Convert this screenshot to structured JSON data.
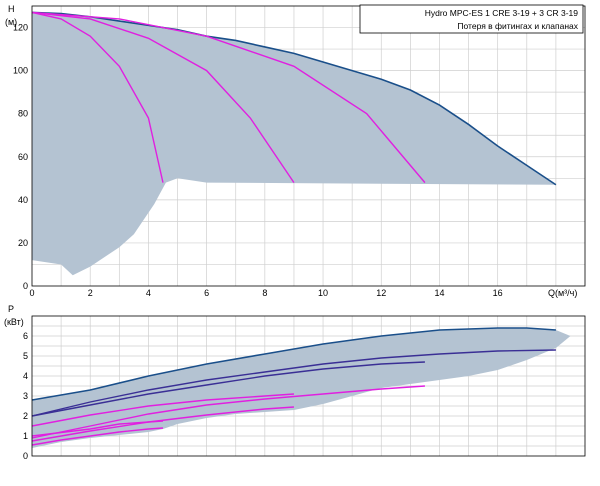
{
  "colors": {
    "area": "#b4c3d2",
    "envelope": "#1a4f8a",
    "envelope_dark": "#3a2f95",
    "system_curve": "#e020e0",
    "grid": "#cfcfcf",
    "frame": "#000000"
  },
  "legend": {
    "line1": "Hydro MPC-ES 1 CRE 3-19  +  3 CR 3-19",
    "line2": "Потеря в фитингах и клапанах"
  },
  "chart_data": [
    {
      "type": "area",
      "title": "",
      "ylabel": "H",
      "yunit": "(м)",
      "xlabel": "Q(м³/ч)",
      "xlim": [
        0,
        19
      ],
      "ylim": [
        0,
        130
      ],
      "grid": true,
      "x_ticks": [
        "0",
        "2",
        "4",
        "6",
        "8",
        "10",
        "12",
        "14",
        "16"
      ],
      "y_ticks": [
        "0",
        "20",
        "40",
        "60",
        "80",
        "100",
        "120"
      ],
      "region_lower": [
        [
          0,
          12
        ],
        [
          1,
          10
        ],
        [
          1.4,
          5
        ],
        [
          2,
          9
        ],
        [
          3,
          18
        ],
        [
          3.5,
          24
        ],
        [
          4.2,
          38
        ],
        [
          4.6,
          48
        ],
        [
          5,
          50
        ],
        [
          6,
          48
        ],
        [
          18,
          47
        ]
      ],
      "envelope": [
        [
          0,
          127
        ],
        [
          1,
          126.5
        ],
        [
          2,
          125
        ],
        [
          3,
          123
        ],
        [
          4,
          121
        ],
        [
          5,
          119
        ],
        [
          6,
          116
        ],
        [
          7,
          114
        ],
        [
          8,
          111
        ],
        [
          9,
          108
        ],
        [
          10,
          104
        ],
        [
          11,
          100
        ],
        [
          12,
          96
        ],
        [
          13,
          91
        ],
        [
          14,
          84
        ],
        [
          15,
          75
        ],
        [
          16,
          65
        ],
        [
          17,
          56
        ],
        [
          18,
          47
        ]
      ],
      "series": [
        {
          "values": [
            [
              0,
              127
            ],
            [
              1,
              124
            ],
            [
              2,
              116
            ],
            [
              3,
              102
            ],
            [
              4,
              78
            ],
            [
              4.5,
              48
            ]
          ]
        },
        {
          "values": [
            [
              0,
              127
            ],
            [
              2,
              124
            ],
            [
              4,
              115
            ],
            [
              6,
              100
            ],
            [
              7.5,
              78
            ],
            [
              9,
              48
            ]
          ]
        },
        {
          "values": [
            [
              0,
              127
            ],
            [
              3,
              124
            ],
            [
              6,
              116
            ],
            [
              9,
              102
            ],
            [
              11.5,
              80
            ],
            [
              13.5,
              48
            ]
          ]
        }
      ]
    },
    {
      "type": "area",
      "title": "",
      "ylabel": "P",
      "yunit": "(кВт)",
      "xlabel": "",
      "xlim": [
        0,
        19
      ],
      "ylim": [
        0,
        7
      ],
      "grid": true,
      "x_ticks": [],
      "y_ticks": [
        "0",
        "1",
        "2",
        "3",
        "4",
        "5",
        "6"
      ],
      "region_lower": [
        [
          0,
          0.4
        ],
        [
          1,
          0.7
        ],
        [
          2,
          0.9
        ],
        [
          3,
          1.05
        ],
        [
          4,
          1.2
        ],
        [
          4.5,
          1.35
        ],
        [
          5,
          1.6
        ],
        [
          6,
          1.9
        ],
        [
          7,
          2.1
        ],
        [
          9,
          2.3
        ],
        [
          10,
          2.6
        ],
        [
          11,
          3.0
        ],
        [
          12,
          3.4
        ],
        [
          13,
          3.6
        ],
        [
          14,
          3.8
        ],
        [
          15,
          4.0
        ],
        [
          16,
          4.3
        ],
        [
          17,
          4.8
        ],
        [
          18,
          5.4
        ],
        [
          18.5,
          6.0
        ]
      ],
      "envelope": [
        [
          0,
          2.8
        ],
        [
          2,
          3.3
        ],
        [
          4,
          4.0
        ],
        [
          6,
          4.6
        ],
        [
          8,
          5.1
        ],
        [
          10,
          5.6
        ],
        [
          12,
          6.0
        ],
        [
          14,
          6.3
        ],
        [
          16,
          6.4
        ],
        [
          17,
          6.4
        ],
        [
          18,
          6.3
        ]
      ],
      "series": [
        {
          "values": [
            [
              0,
              2.0
            ],
            [
              2,
              2.7
            ],
            [
              4,
              3.3
            ],
            [
              6,
              3.8
            ],
            [
              8,
              4.2
            ],
            [
              10,
              4.6
            ],
            [
              12,
              4.9
            ],
            [
              14,
              5.1
            ],
            [
              16,
              5.25
            ],
            [
              18,
              5.3
            ]
          ]
        },
        {
          "values": [
            [
              0,
              2.0
            ],
            [
              2,
              2.55
            ],
            [
              4,
              3.1
            ],
            [
              6,
              3.55
            ],
            [
              8,
              4.0
            ],
            [
              10,
              4.35
            ],
            [
              12,
              4.6
            ],
            [
              13.5,
              4.7
            ]
          ]
        },
        {
          "values": [
            [
              0,
              1.5
            ],
            [
              2,
              2.05
            ],
            [
              4,
              2.5
            ],
            [
              6,
              2.8
            ],
            [
              8,
              3.0
            ],
            [
              9,
              3.1
            ]
          ]
        },
        {
          "values": [
            [
              0,
              1.0
            ],
            [
              2,
              1.35
            ],
            [
              3,
              1.6
            ],
            [
              4,
              1.7
            ],
            [
              4.5,
              1.75
            ]
          ]
        },
        {
          "values": [
            [
              0,
              0.9
            ],
            [
              2,
              1.5
            ],
            [
              4,
              2.1
            ],
            [
              6,
              2.55
            ],
            [
              8,
              2.85
            ],
            [
              10,
              3.1
            ],
            [
              12,
              3.35
            ],
            [
              13.5,
              3.5
            ]
          ]
        },
        {
          "values": [
            [
              0,
              0.75
            ],
            [
              2,
              1.25
            ],
            [
              4,
              1.7
            ],
            [
              6,
              2.05
            ],
            [
              8,
              2.35
            ],
            [
              9,
              2.45
            ]
          ]
        },
        {
          "values": [
            [
              0,
              0.55
            ],
            [
              1,
              0.8
            ],
            [
              2,
              1.0
            ],
            [
              3,
              1.2
            ],
            [
              4,
              1.35
            ],
            [
              4.5,
              1.4
            ]
          ]
        }
      ]
    }
  ]
}
